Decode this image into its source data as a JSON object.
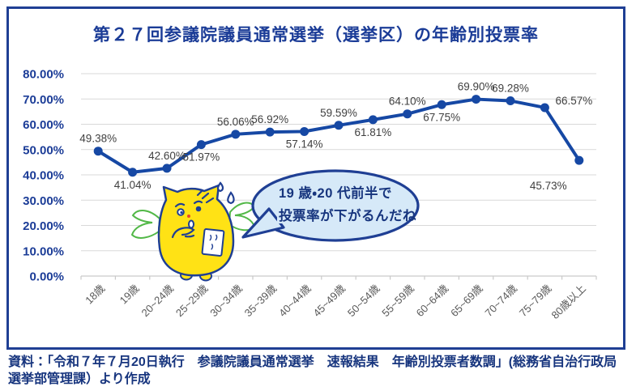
{
  "title": "第２７回参議院議員通常選挙（選挙区）の年齢別投票率",
  "chart_data": {
    "type": "line",
    "title": "第２７回参議院議員通常選挙（選挙区）の年齢別投票率",
    "categories": [
      "18歳",
      "19歳",
      "20~24歳",
      "25~29歳",
      "30~34歳",
      "35~39歳",
      "40~44歳",
      "45~49歳",
      "50~54歳",
      "55~59歳",
      "60~64歳",
      "65~69歳",
      "70~74歳",
      "75~79歳",
      "80歳以上"
    ],
    "values": [
      49.38,
      41.04,
      42.6,
      51.97,
      56.06,
      56.92,
      57.14,
      59.59,
      61.81,
      64.1,
      67.75,
      69.9,
      69.28,
      66.57,
      45.73
    ],
    "unit": "%",
    "xlabel": "",
    "ylabel": "",
    "ylim": [
      0,
      80
    ],
    "y_tick_labels": [
      "0.00%",
      "10.00%",
      "20.00%",
      "30.00%",
      "40.00%",
      "50.00%",
      "60.00%",
      "70.00%",
      "80.00%"
    ],
    "grid": true,
    "legend": "none",
    "label_positions": [
      "above",
      "below",
      "above",
      "below",
      "above",
      "above",
      "below",
      "above",
      "below",
      "above",
      "below",
      "above",
      "above",
      "right",
      "below-left"
    ],
    "line_color": "#1648A4",
    "marker": "circle"
  },
  "annotation": {
    "speech_bubble": {
      "lines": [
        "19 歳・20 代前半で",
        "投票率が下がるんだね"
      ],
      "fill_color": "#D6E9F8",
      "border_color": "#1F3F94"
    },
    "mascot": "election-mascot-meisuikun"
  },
  "footer": {
    "source_text": "資料：「令和７年７月20日執行　参議院議員通常選挙　速報結果　年齢別投票者数調」(総務省自治行政局選挙部管理課）より作成"
  },
  "colors": {
    "frame_border": "#1F3F94",
    "navy_text": "#1B3C97",
    "gridline": "#D9D9D9",
    "axis": "#C9C9C9",
    "data_label": "#404040",
    "x_label": "#595959",
    "mascot_yellow": "#FFE215",
    "wing_green": "#52B847"
  }
}
